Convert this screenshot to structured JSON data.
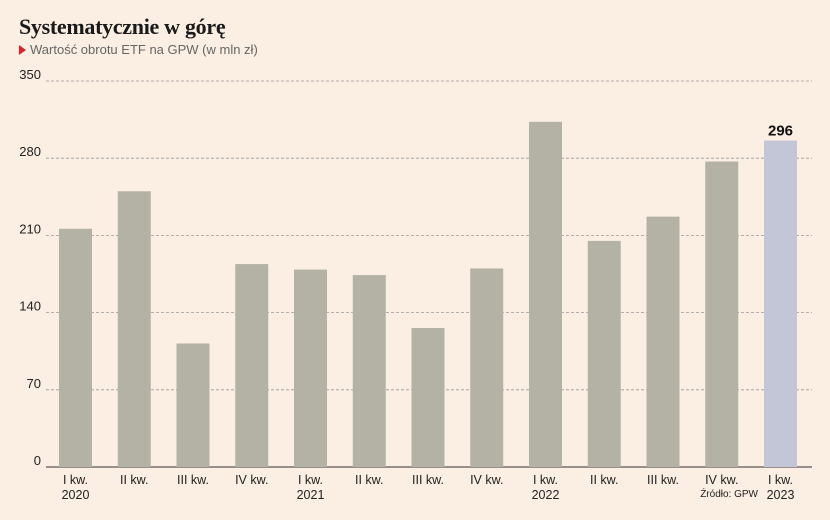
{
  "header": {
    "title": "Systematycznie w górę",
    "subtitle": "Wartość obrotu ETF na GPW (w mln zł)"
  },
  "source": "Źródło: GPW",
  "colors": {
    "bar": "#b3b2a5",
    "highlight": "#c2c6d7",
    "grid": "#9a9a9a",
    "background": "#fbeee2"
  },
  "chart_data": {
    "type": "bar",
    "categories": [
      "I kw.",
      "II kw.",
      "III kw.",
      "IV kw.",
      "I kw.",
      "II kw.",
      "III kw.",
      "IV kw.",
      "I kw.",
      "II kw.",
      "III kw.",
      "IV kw.",
      "I kw."
    ],
    "years": [
      "2020",
      "",
      "",
      "",
      "2021",
      "",
      "",
      "",
      "2022",
      "",
      "",
      "",
      "2023"
    ],
    "values": [
      216,
      250,
      112,
      184,
      179,
      174,
      126,
      180,
      313,
      205,
      227,
      277,
      296
    ],
    "highlight_index": 12,
    "value_label": "296",
    "yticks": [
      0,
      70,
      140,
      210,
      280,
      350
    ],
    "ylim": [
      0,
      350
    ],
    "grid": true
  }
}
